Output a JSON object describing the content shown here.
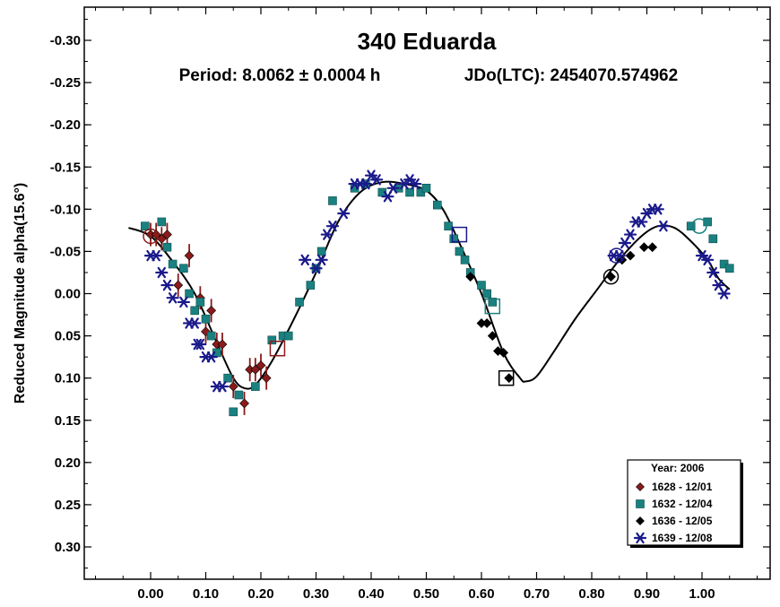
{
  "chart_data": {
    "type": "scatter",
    "title": "340 Eduarda",
    "subtitle_left": "Period: 8.0062 ± 0.0004 h",
    "subtitle_right": "JDo(LTC): 2454070.574962",
    "xlabel": "",
    "ylabel": "Reduced Magnitude alpha(15.6°)",
    "xlim": [
      -0.1,
      1.12
    ],
    "ylim": [
      0.35,
      -0.35
    ],
    "y_inverted": true,
    "x_ticks": [
      0.0,
      0.1,
      0.2,
      0.3,
      0.4,
      0.5,
      0.6,
      0.7,
      0.8,
      0.9,
      1.0
    ],
    "x_tick_labels": [
      "0.00",
      "0.10",
      "0.20",
      "0.30",
      "0.40",
      "0.50",
      "0.60",
      "0.70",
      "0.80",
      "0.90",
      "1.00"
    ],
    "y_ticks": [
      -0.3,
      -0.25,
      -0.2,
      -0.15,
      -0.1,
      -0.05,
      0.0,
      0.05,
      0.1,
      0.15,
      0.2,
      0.25,
      0.3
    ],
    "y_tick_labels": [
      "-0.30",
      "-0.25",
      "-0.20",
      "-0.15",
      "-0.10",
      "-0.05",
      "0.00",
      "0.05",
      "0.10",
      "0.15",
      "0.20",
      "0.25",
      "0.30"
    ],
    "legend": {
      "title": "Year: 2006",
      "position": "bottom-right"
    },
    "series": [
      {
        "name": "1628 - 12/01",
        "marker": "diamond",
        "color": "#8b1a1a",
        "error_bars": true,
        "points": [
          [
            0.0,
            -0.07
          ],
          [
            0.01,
            -0.07
          ],
          [
            0.02,
            -0.065
          ],
          [
            0.03,
            -0.07
          ],
          [
            0.05,
            -0.01
          ],
          [
            0.07,
            -0.045
          ],
          [
            0.09,
            0.005
          ],
          [
            0.1,
            0.045
          ],
          [
            0.11,
            0.02
          ],
          [
            0.12,
            0.06
          ],
          [
            0.13,
            0.06
          ],
          [
            0.15,
            0.11
          ],
          [
            0.17,
            0.13
          ],
          [
            0.18,
            0.09
          ],
          [
            0.19,
            0.09
          ],
          [
            0.2,
            0.085
          ],
          [
            0.21,
            0.1
          ]
        ]
      },
      {
        "name": "1632 - 12/04",
        "marker": "square",
        "color": "#1a8080",
        "points": [
          [
            -0.01,
            -0.08
          ],
          [
            0.02,
            -0.085
          ],
          [
            0.03,
            -0.055
          ],
          [
            0.04,
            -0.035
          ],
          [
            0.06,
            -0.03
          ],
          [
            0.07,
            0.0
          ],
          [
            0.08,
            0.02
          ],
          [
            0.09,
            0.01
          ],
          [
            0.1,
            0.03
          ],
          [
            0.11,
            0.05
          ],
          [
            0.12,
            0.07
          ],
          [
            0.14,
            0.1
          ],
          [
            0.15,
            0.14
          ],
          [
            0.16,
            0.12
          ],
          [
            0.19,
            0.11
          ],
          [
            0.22,
            0.055
          ],
          [
            0.24,
            0.05
          ],
          [
            0.25,
            0.05
          ],
          [
            0.27,
            0.01
          ],
          [
            0.29,
            -0.01
          ],
          [
            0.3,
            -0.03
          ],
          [
            0.31,
            -0.05
          ],
          [
            0.33,
            -0.11
          ],
          [
            0.37,
            -0.125
          ],
          [
            0.39,
            -0.13
          ],
          [
            0.42,
            -0.12
          ],
          [
            0.45,
            -0.125
          ],
          [
            0.47,
            -0.12
          ],
          [
            0.49,
            -0.12
          ],
          [
            0.5,
            -0.125
          ],
          [
            0.52,
            -0.105
          ],
          [
            0.54,
            -0.08
          ],
          [
            0.55,
            -0.065
          ],
          [
            0.56,
            -0.05
          ],
          [
            0.57,
            -0.04
          ],
          [
            0.58,
            -0.025
          ],
          [
            0.6,
            -0.01
          ],
          [
            0.61,
            0.0
          ],
          [
            0.62,
            0.01
          ],
          [
            0.98,
            -0.08
          ],
          [
            1.01,
            -0.085
          ],
          [
            1.02,
            -0.065
          ],
          [
            1.04,
            -0.035
          ],
          [
            1.05,
            -0.03
          ]
        ]
      },
      {
        "name": "1636 - 12/05",
        "marker": "diamond",
        "color": "#000000",
        "points": [
          [
            0.58,
            -0.02
          ],
          [
            0.6,
            0.035
          ],
          [
            0.61,
            0.035
          ],
          [
            0.62,
            0.05
          ],
          [
            0.63,
            0.068
          ],
          [
            0.64,
            0.07
          ],
          [
            0.65,
            0.1
          ],
          [
            0.835,
            -0.02
          ],
          [
            0.855,
            -0.04
          ],
          [
            0.87,
            -0.045
          ],
          [
            0.895,
            -0.055
          ],
          [
            0.91,
            -0.055
          ]
        ]
      },
      {
        "name": "1639 - 12/08",
        "marker": "asterisk",
        "color": "#1a1a8b",
        "points": [
          [
            0.0,
            -0.045
          ],
          [
            0.01,
            -0.045
          ],
          [
            0.02,
            -0.025
          ],
          [
            0.03,
            -0.01
          ],
          [
            0.04,
            0.005
          ],
          [
            0.06,
            0.01
          ],
          [
            0.07,
            0.035
          ],
          [
            0.08,
            0.035
          ],
          [
            0.085,
            0.06
          ],
          [
            0.09,
            0.06
          ],
          [
            0.1,
            0.075
          ],
          [
            0.11,
            0.075
          ],
          [
            0.12,
            0.11
          ],
          [
            0.13,
            0.11
          ],
          [
            0.28,
            -0.04
          ],
          [
            0.3,
            -0.03
          ],
          [
            0.31,
            -0.04
          ],
          [
            0.32,
            -0.07
          ],
          [
            0.33,
            -0.08
          ],
          [
            0.35,
            -0.095
          ],
          [
            0.37,
            -0.13
          ],
          [
            0.38,
            -0.13
          ],
          [
            0.39,
            -0.13
          ],
          [
            0.4,
            -0.14
          ],
          [
            0.41,
            -0.135
          ],
          [
            0.43,
            -0.115
          ],
          [
            0.44,
            -0.125
          ],
          [
            0.46,
            -0.13
          ],
          [
            0.47,
            -0.135
          ],
          [
            0.48,
            -0.13
          ],
          [
            0.84,
            -0.045
          ],
          [
            0.85,
            -0.045
          ],
          [
            0.86,
            -0.06
          ],
          [
            0.87,
            -0.07
          ],
          [
            0.88,
            -0.085
          ],
          [
            0.89,
            -0.085
          ],
          [
            0.9,
            -0.095
          ],
          [
            0.91,
            -0.1
          ],
          [
            0.92,
            -0.1
          ],
          [
            0.93,
            -0.08
          ],
          [
            1.0,
            -0.045
          ],
          [
            1.01,
            -0.04
          ],
          [
            1.02,
            -0.025
          ],
          [
            1.03,
            -0.01
          ],
          [
            1.04,
            0.0
          ]
        ]
      }
    ],
    "fit_curve": [
      [
        -0.04,
        -0.078
      ],
      [
        0.0,
        -0.068
      ],
      [
        0.04,
        -0.038
      ],
      [
        0.08,
        0.0
      ],
      [
        0.12,
        0.058
      ],
      [
        0.15,
        0.1
      ],
      [
        0.17,
        0.112
      ],
      [
        0.19,
        0.108
      ],
      [
        0.22,
        0.08
      ],
      [
        0.26,
        0.03
      ],
      [
        0.3,
        -0.025
      ],
      [
        0.34,
        -0.085
      ],
      [
        0.38,
        -0.12
      ],
      [
        0.42,
        -0.132
      ],
      [
        0.46,
        -0.13
      ],
      [
        0.5,
        -0.122
      ],
      [
        0.53,
        -0.1
      ],
      [
        0.56,
        -0.06
      ],
      [
        0.6,
        0.0
      ],
      [
        0.64,
        0.07
      ],
      [
        0.67,
        0.1
      ],
      [
        0.68,
        0.104
      ],
      [
        0.7,
        0.098
      ],
      [
        0.73,
        0.07
      ],
      [
        0.77,
        0.03
      ],
      [
        0.81,
        -0.005
      ],
      [
        0.85,
        -0.04
      ],
      [
        0.89,
        -0.068
      ],
      [
        0.92,
        -0.08
      ],
      [
        0.95,
        -0.078
      ],
      [
        0.98,
        -0.062
      ],
      [
        1.01,
        -0.04
      ],
      [
        1.03,
        -0.018
      ],
      [
        1.05,
        -0.005
      ]
    ],
    "open_markers": [
      {
        "marker": "circle",
        "color": "#8b1a1a",
        "x": 0.0,
        "y": -0.068
      },
      {
        "marker": "square",
        "color": "#8b1a1a",
        "x": 0.23,
        "y": 0.065
      },
      {
        "marker": "square",
        "color": "#1a1a8b",
        "x": 0.56,
        "y": -0.07
      },
      {
        "marker": "square",
        "color": "#1a8080",
        "x": 0.62,
        "y": 0.015
      },
      {
        "marker": "square",
        "color": "#000000",
        "x": 0.645,
        "y": 0.1
      },
      {
        "marker": "circle",
        "color": "#000000",
        "x": 0.835,
        "y": -0.02
      },
      {
        "marker": "circle",
        "color": "#1a1a8b",
        "x": 0.845,
        "y": -0.045
      },
      {
        "marker": "circle",
        "color": "#1a8080",
        "x": 0.995,
        "y": -0.08
      }
    ],
    "grid": false
  }
}
